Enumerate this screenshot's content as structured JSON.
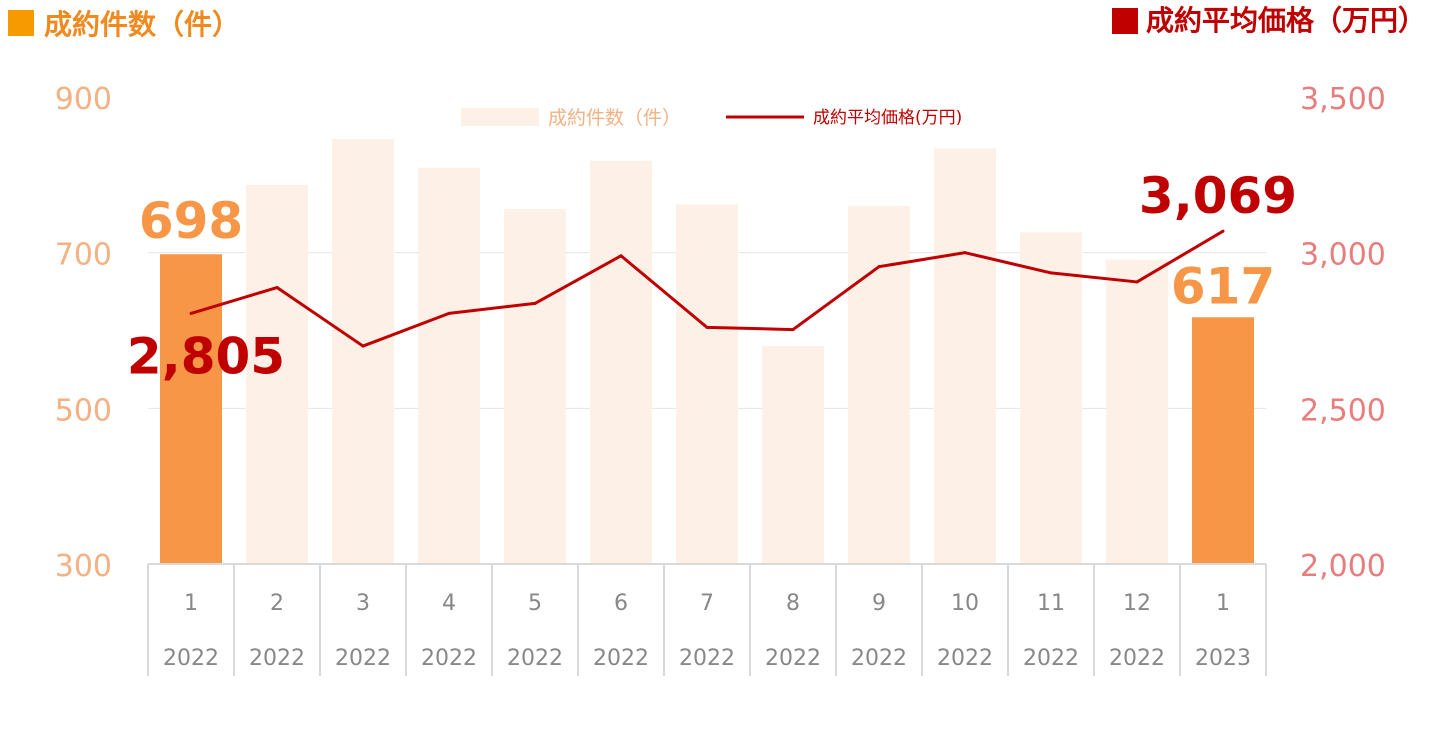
{
  "header": {
    "left_title": "成約件数（件）",
    "right_title": "成約平均価格（万円）"
  },
  "legend": {
    "bar_label": "成約件数（件）",
    "line_label": "成約平均価格(万円)"
  },
  "colors": {
    "left_marker": "#f59a00",
    "left_title": "#f08a1e",
    "right_marker": "#c00000",
    "right_title": "#c00000",
    "bar_highlight": "#f79646",
    "bar_faded": "#fdf0e7",
    "line": "#c00000",
    "left_axis_text": "#f4b183",
    "right_axis_text": "#e87d7d",
    "category_text": "#888888",
    "grid": "#e4e4e4"
  },
  "chart_data": {
    "type": "bar",
    "categories": [
      "1",
      "2",
      "3",
      "4",
      "5",
      "6",
      "7",
      "8",
      "9",
      "10",
      "11",
      "12",
      "1"
    ],
    "category_years": [
      "2022",
      "2022",
      "2022",
      "2022",
      "2022",
      "2022",
      "2022",
      "2022",
      "2022",
      "2022",
      "2022",
      "2022",
      "2023"
    ],
    "series": [
      {
        "name": "成約件数（件）",
        "type": "bar",
        "axis": "left",
        "values": [
          698,
          787,
          846,
          809,
          756,
          818,
          762,
          580,
          760,
          834,
          726,
          691,
          617
        ],
        "highlighted": [
          0,
          12
        ]
      },
      {
        "name": "成約平均価格(万円)",
        "type": "line",
        "axis": "right",
        "values": [
          2805,
          2888,
          2700,
          2805,
          2837,
          2990,
          2760,
          2753,
          2955,
          3000,
          2935,
          2906,
          3069
        ]
      }
    ],
    "y_left": {
      "ylim": [
        300,
        900
      ],
      "ticks": [
        "300",
        "500",
        "700",
        "900"
      ]
    },
    "y_right": {
      "ylim": [
        2000,
        3500
      ],
      "ticks": [
        "2,000",
        "2,500",
        "3,000",
        "3,500"
      ]
    },
    "annotations": [
      {
        "text": "698",
        "series": 0,
        "index": 0
      },
      {
        "text": "617",
        "series": 0,
        "index": 12
      },
      {
        "text": "2,805",
        "series": 1,
        "index": 0
      },
      {
        "text": "3,069",
        "series": 1,
        "index": 12
      }
    ],
    "grid": true,
    "legend_position": "top-center"
  }
}
